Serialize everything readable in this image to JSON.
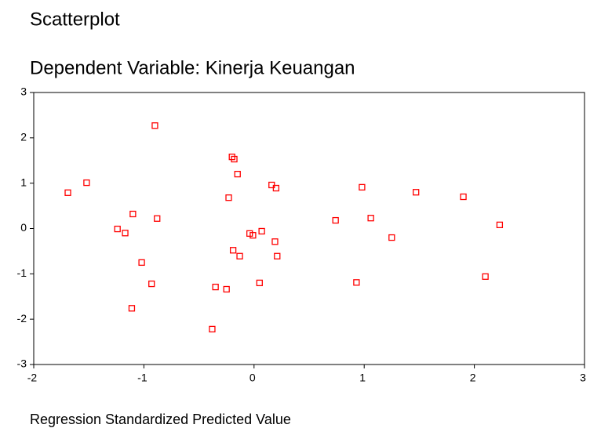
{
  "chart_data": {
    "type": "scatter",
    "title": "Scatterplot",
    "subtitle": "Dependent Variable: Kinerja Keuangan",
    "xlabel": "Regression Standardized Predicted Value",
    "x": [
      -1.69,
      -1.52,
      -0.9,
      -1.1,
      -1.24,
      -1.17,
      -0.88,
      -1.02,
      -0.93,
      -1.11,
      -0.2,
      -0.18,
      -0.15,
      -0.23,
      0.16,
      0.2,
      -0.04,
      -0.01,
      0.07,
      0.19,
      -0.19,
      -0.13,
      0.21,
      0.05,
      -0.35,
      -0.25,
      -0.38,
      0.74,
      0.98,
      1.06,
      1.25,
      0.93,
      1.47,
      1.9,
      2.1,
      2.23
    ],
    "values": [
      0.79,
      1.01,
      2.27,
      0.32,
      -0.01,
      -0.1,
      0.22,
      -0.75,
      -1.22,
      -1.76,
      1.58,
      1.53,
      1.2,
      0.68,
      0.96,
      0.89,
      -0.11,
      -0.15,
      -0.06,
      -0.29,
      -0.48,
      -0.61,
      -0.61,
      -1.2,
      -1.29,
      -1.34,
      -2.22,
      0.18,
      0.91,
      0.23,
      -0.2,
      -1.19,
      0.8,
      0.7,
      -1.06,
      0.08
    ],
    "color": "#ff0000",
    "xlim": [
      -2,
      3
    ],
    "xticks": [
      -2,
      -1,
      0,
      1,
      2,
      3
    ],
    "ylim": [
      -3,
      3
    ],
    "yticks": [
      -3,
      -2,
      -1,
      0,
      1,
      2,
      3
    ]
  }
}
